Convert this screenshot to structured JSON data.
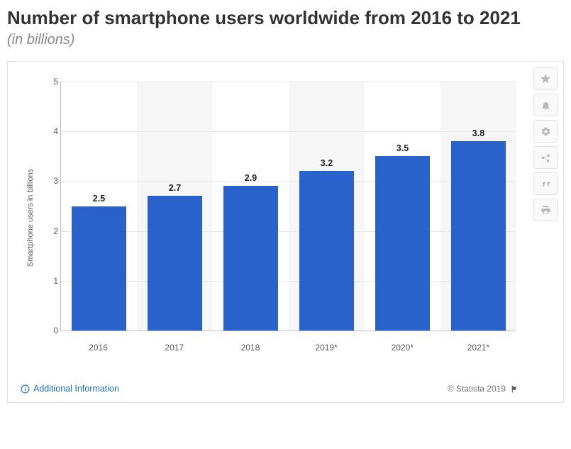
{
  "title": "Number of smartphone users worldwide from 2016 to 2021",
  "subtitle": "(in billions)",
  "chart": {
    "type": "bar",
    "ylabel": "Smartphone users in billions",
    "ylim": [
      0,
      5
    ],
    "ytick_step": 1,
    "grid_color": "#e8e8e8",
    "axis_color": "#bfbfbf",
    "tick_fontsize": 12,
    "tick_color": "#5a5a5a",
    "bar_width": 0.72,
    "bar_color": "#2a62cc",
    "bar_label_fontsize": 12.5,
    "bar_label_weight": 700,
    "alt_slot_bg": "#f6f6f6",
    "background_color": "#ffffff",
    "categories": [
      "2016",
      "2017",
      "2018",
      "2019*",
      "2020*",
      "2021*"
    ],
    "values": [
      2.5,
      2.7,
      2.9,
      3.2,
      3.5,
      3.8
    ]
  },
  "footer": {
    "additional_label": "Additional Information",
    "credit": "© Statista 2019",
    "link_color": "#1f6fc2"
  },
  "actions": {
    "star": "star-icon",
    "bell": "bell-icon",
    "gear": "gear-icon",
    "share": "share-icon",
    "quote": "quote-icon",
    "print": "print-icon"
  }
}
